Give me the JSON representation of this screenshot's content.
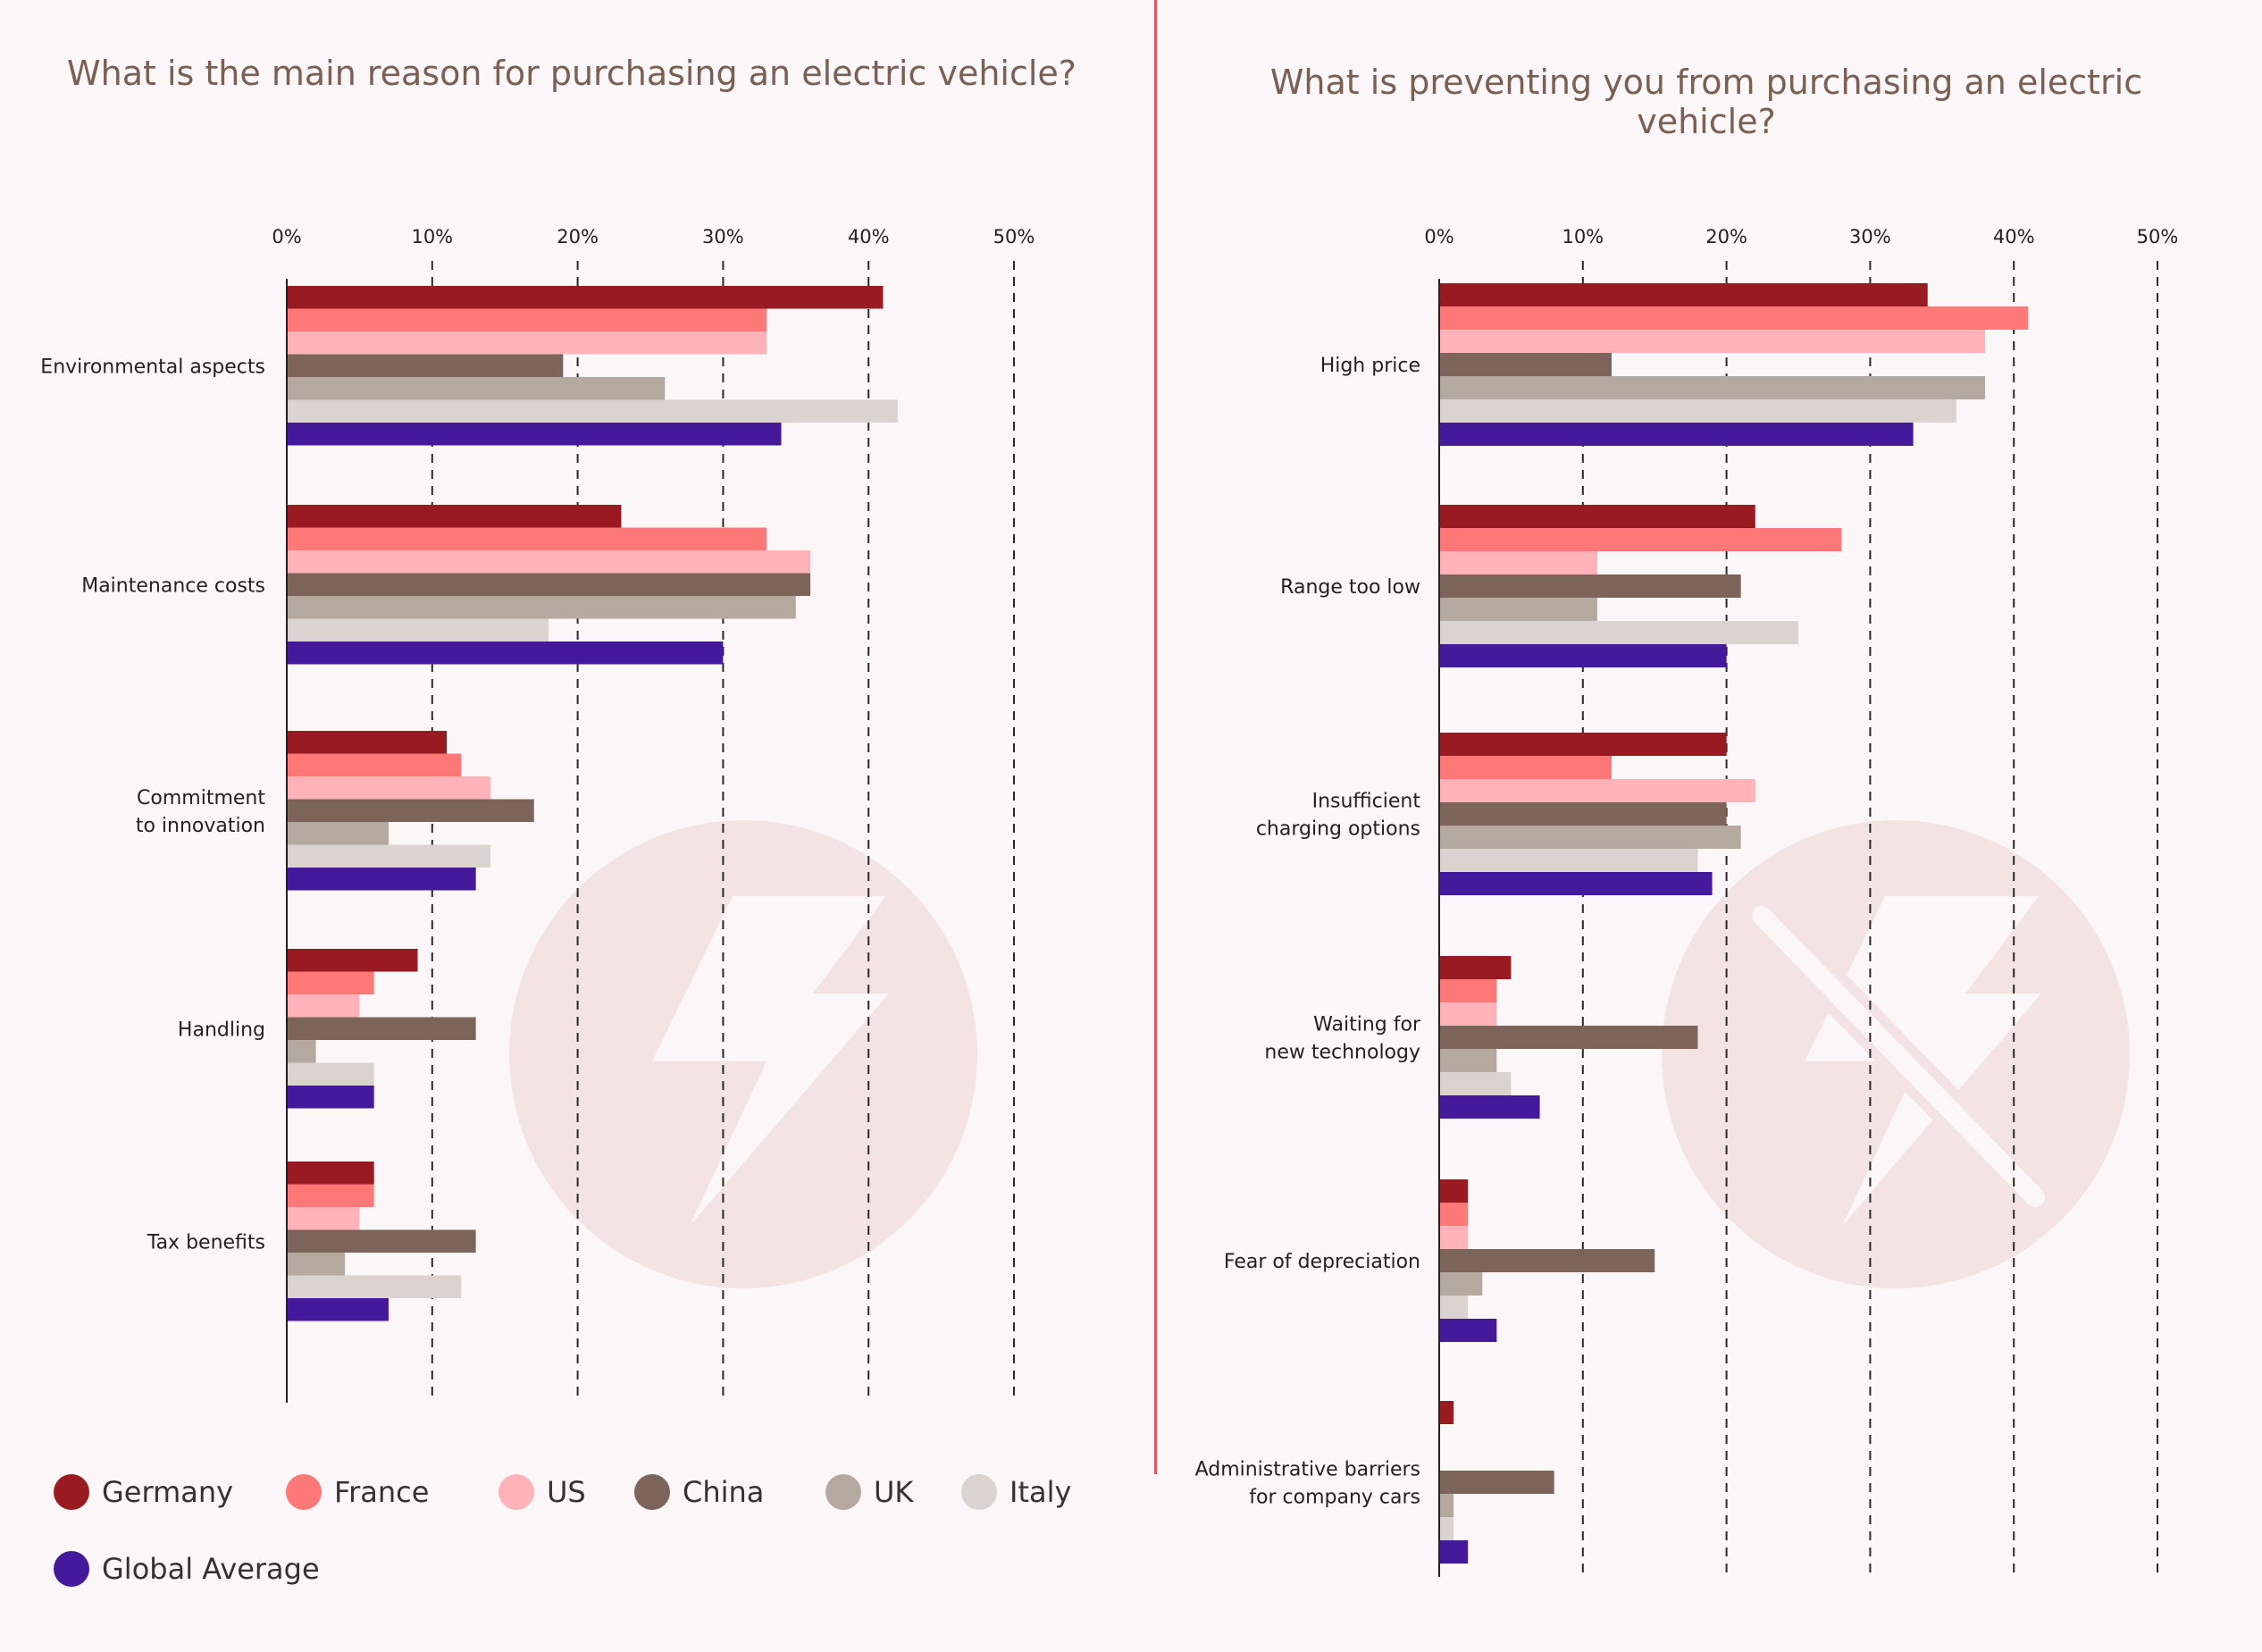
{
  "colors": {
    "Germany": "#9a1a22",
    "France": "#ff7878",
    "US": "#ffb3b8",
    "China": "#7d645a",
    "UK": "#b4a89f",
    "Italy": "#dbd3cf",
    "Global Average": "#45199c"
  },
  "legend": [
    "Germany",
    "France",
    "US",
    "China",
    "UK",
    "Italy",
    "Global Average"
  ],
  "icons": [
    "lightning-bolt-icon",
    "crossed-lightning-bolt-icon"
  ],
  "chart_data": [
    {
      "type": "bar",
      "orientation": "horizontal",
      "title": "What is the main reason for purchasing an electric vehicle?",
      "xlim": [
        0,
        50
      ],
      "x_ticks": [
        "0%",
        "10%",
        "20%",
        "30%",
        "40%",
        "50%"
      ],
      "grid": true,
      "categories": [
        "Environmental aspects",
        "Maintenance costs",
        "Commitment\nto innovation",
        "Handling",
        "Tax benefits"
      ],
      "series": [
        {
          "name": "Germany",
          "values": [
            41,
            23,
            11,
            9,
            6
          ]
        },
        {
          "name": "France",
          "values": [
            33,
            33,
            12,
            6,
            6
          ]
        },
        {
          "name": "US",
          "values": [
            33,
            36,
            14,
            5,
            5
          ]
        },
        {
          "name": "China",
          "values": [
            19,
            36,
            17,
            13,
            13
          ]
        },
        {
          "name": "UK",
          "values": [
            26,
            35,
            7,
            2,
            4
          ]
        },
        {
          "name": "Italy",
          "values": [
            42,
            18,
            14,
            6,
            12
          ]
        },
        {
          "name": "Global Average",
          "values": [
            34,
            30,
            13,
            6,
            7
          ]
        }
      ]
    },
    {
      "type": "bar",
      "orientation": "horizontal",
      "title": "What is preventing you from purchasing an electric vehicle?",
      "xlim": [
        0,
        50
      ],
      "x_ticks": [
        "0%",
        "10%",
        "20%",
        "30%",
        "40%",
        "50%"
      ],
      "grid": true,
      "categories": [
        "High price",
        "Range too low",
        "Insufficient\ncharging options",
        "Waiting for\nnew technology",
        "Fear of depreciation",
        "Administrative barriers\nfor company cars"
      ],
      "series": [
        {
          "name": "Germany",
          "values": [
            34,
            22,
            20,
            5,
            2,
            1
          ]
        },
        {
          "name": "France",
          "values": [
            41,
            28,
            12,
            4,
            2,
            0
          ]
        },
        {
          "name": "US",
          "values": [
            38,
            11,
            22,
            4,
            2,
            0
          ]
        },
        {
          "name": "China",
          "values": [
            12,
            21,
            20,
            18,
            15,
            8
          ]
        },
        {
          "name": "UK",
          "values": [
            38,
            11,
            21,
            4,
            3,
            1
          ]
        },
        {
          "name": "Italy",
          "values": [
            36,
            25,
            18,
            5,
            2,
            1
          ]
        },
        {
          "name": "Global Average",
          "values": [
            33,
            20,
            19,
            7,
            4,
            2
          ]
        }
      ]
    }
  ]
}
